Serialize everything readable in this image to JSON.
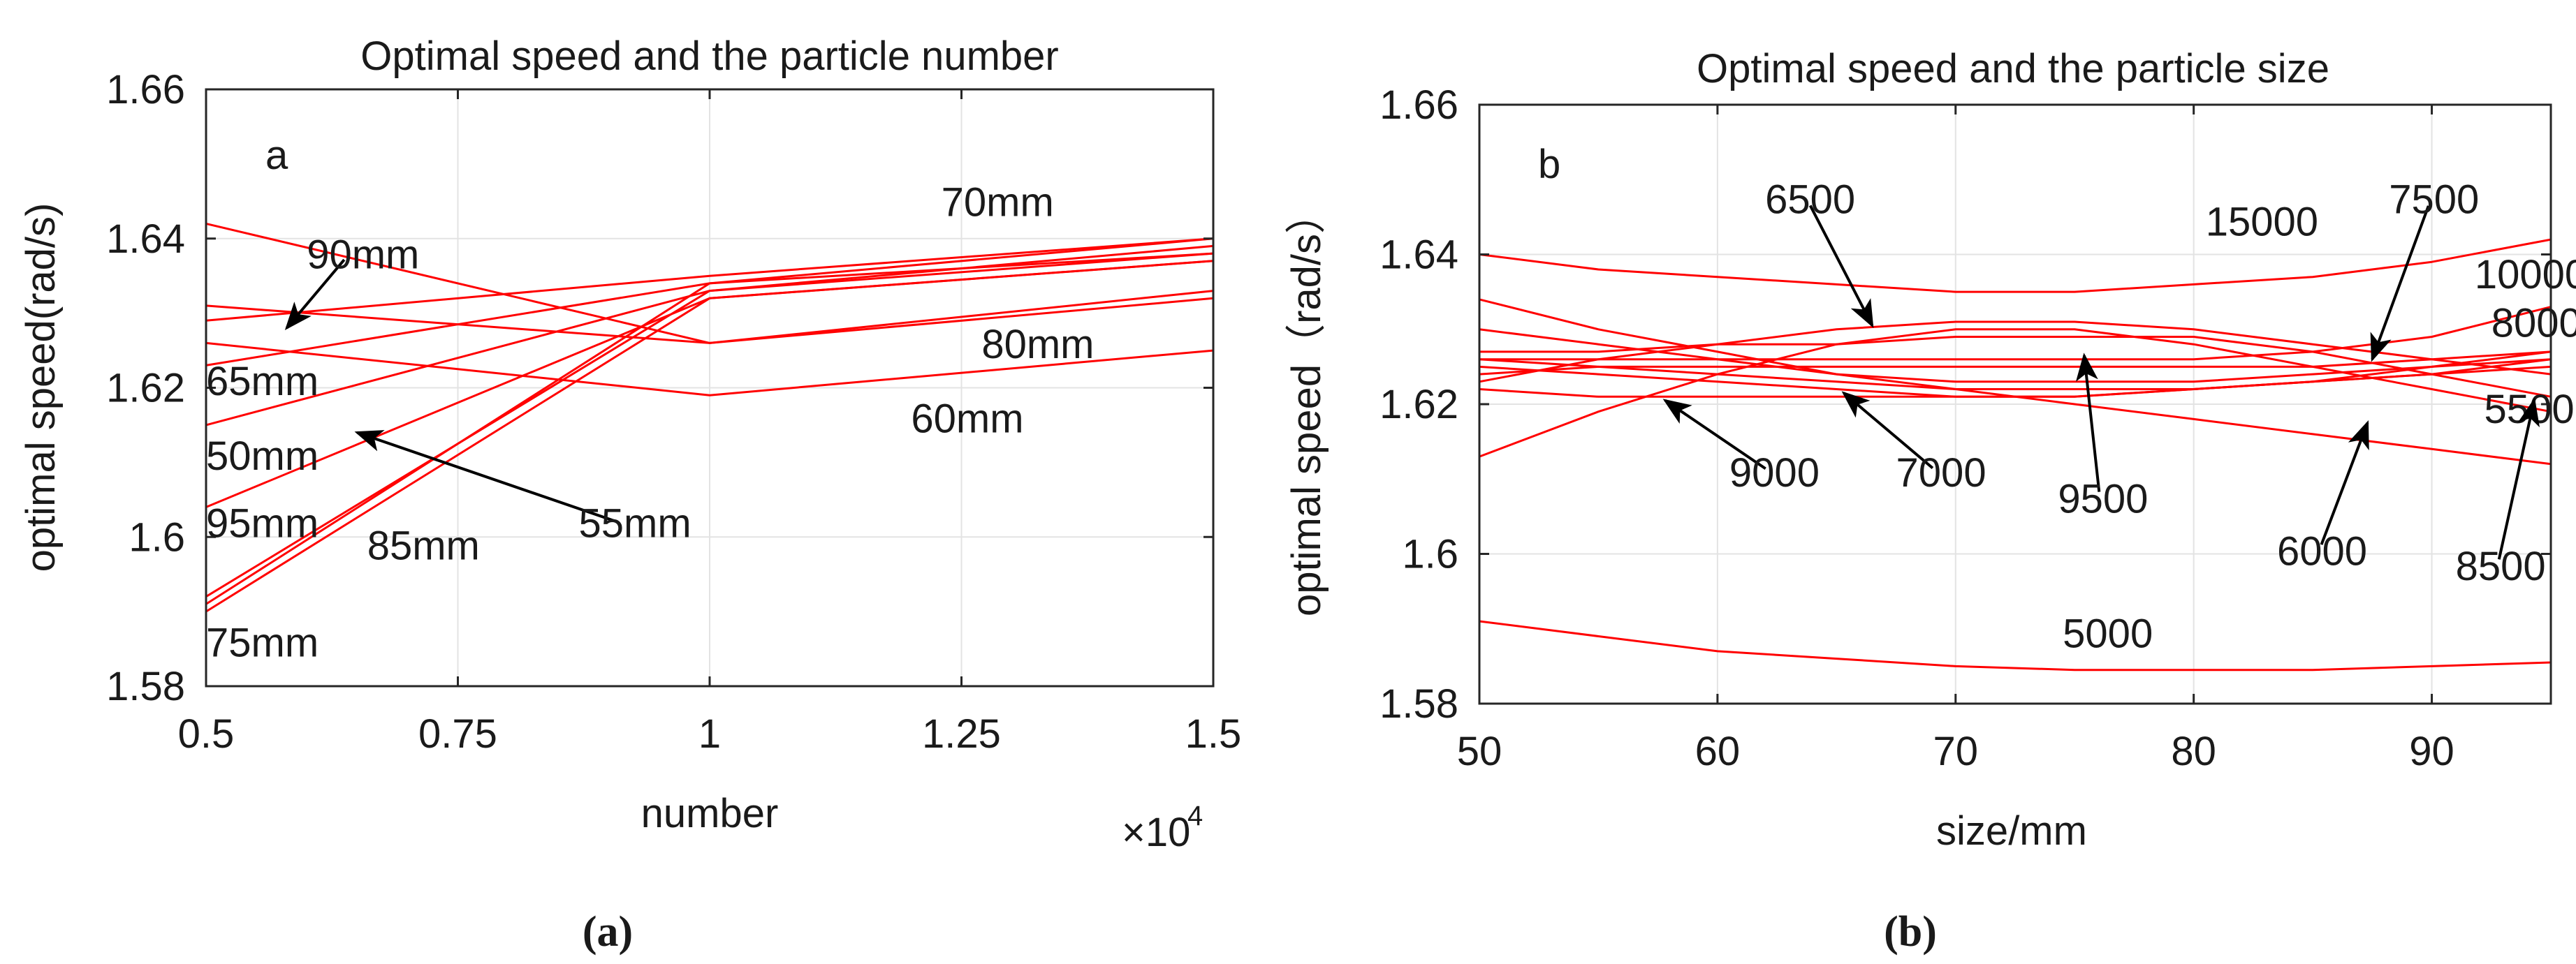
{
  "chart_data": [
    {
      "id": "a",
      "type": "line",
      "title": "Optimal speed and the particle number",
      "panel_letter": "a",
      "xlabel": "number",
      "ylabel": "optimal speed(rad/s)",
      "x_exponent_label": "×10",
      "x_exponent_power": "4",
      "xlim": [
        0.5,
        1.5
      ],
      "ylim": [
        1.58,
        1.66
      ],
      "xticks": [
        0.5,
        0.75,
        1,
        1.25,
        1.5
      ],
      "xtick_labels": [
        "0.5",
        "0.75",
        "1",
        "1.25",
        "1.5"
      ],
      "yticks": [
        1.58,
        1.6,
        1.62,
        1.64,
        1.66
      ],
      "ytick_labels": [
        "1.58",
        "1.6",
        "1.62",
        "1.64",
        "1.66"
      ],
      "grid": true,
      "line_color": "#ff0000",
      "x": [
        0.5,
        1,
        1.5
      ],
      "series": [
        {
          "name": "50mm",
          "values": [
            1.615,
            1.633,
            1.639
          ]
        },
        {
          "name": "55mm",
          "values": [
            1.591,
            1.634,
            1.638
          ]
        },
        {
          "name": "60mm",
          "values": [
            1.626,
            1.619,
            1.625
          ]
        },
        {
          "name": "65mm",
          "values": [
            1.623,
            1.634,
            1.64
          ]
        },
        {
          "name": "70mm",
          "values": [
            1.629,
            1.635,
            1.64
          ]
        },
        {
          "name": "75mm",
          "values": [
            1.59,
            1.632,
            1.637
          ]
        },
        {
          "name": "80mm",
          "values": [
            1.631,
            1.626,
            1.632
          ]
        },
        {
          "name": "85mm",
          "values": [
            1.592,
            1.633,
            1.638
          ]
        },
        {
          "name": "90mm",
          "values": [
            1.642,
            1.626,
            1.633
          ]
        },
        {
          "name": "95mm",
          "values": [
            1.604,
            1.632,
            1.637
          ]
        }
      ],
      "annotations": [
        {
          "text": "90mm",
          "data": [
            0.6,
            1.636
          ],
          "arrow_to": [
            0.58,
            1.628
          ]
        },
        {
          "text": "70mm",
          "data": [
            1.23,
            1.643
          ]
        },
        {
          "text": "65mm",
          "data": [
            0.5,
            1.619
          ]
        },
        {
          "text": "80mm",
          "data": [
            1.27,
            1.624
          ]
        },
        {
          "text": "50mm",
          "data": [
            0.5,
            1.609
          ]
        },
        {
          "text": "60mm",
          "data": [
            1.2,
            1.614
          ]
        },
        {
          "text": "95mm",
          "data": [
            0.5,
            1.6
          ]
        },
        {
          "text": "55mm",
          "data": [
            0.87,
            1.6
          ],
          "arrow_to": [
            0.65,
            1.614
          ]
        },
        {
          "text": "85mm",
          "data": [
            0.66,
            1.597
          ]
        },
        {
          "text": "75mm",
          "data": [
            0.5,
            1.584
          ]
        }
      ],
      "caption": "(a)"
    },
    {
      "id": "b",
      "type": "line",
      "title": "Optimal speed and the particle size",
      "panel_letter": "b",
      "xlabel": "size/mm",
      "ylabel": "optimal speed（rad/s）",
      "xlim": [
        50,
        95
      ],
      "ylim": [
        1.58,
        1.66
      ],
      "xticks": [
        50,
        60,
        70,
        80,
        90
      ],
      "xtick_labels": [
        "50",
        "60",
        "70",
        "80",
        "90"
      ],
      "yticks": [
        1.58,
        1.6,
        1.62,
        1.64,
        1.66
      ],
      "ytick_labels": [
        "1.58",
        "1.6",
        "1.62",
        "1.64",
        "1.66"
      ],
      "grid": true,
      "line_color": "#ff0000",
      "x": [
        50,
        55,
        60,
        65,
        70,
        75,
        80,
        85,
        90,
        95
      ],
      "series": [
        {
          "name": "5000",
          "values": [
            1.591,
            1.589,
            1.587,
            1.586,
            1.585,
            1.5845,
            1.5845,
            1.5845,
            1.585,
            1.5855
          ]
        },
        {
          "name": "5500",
          "values": [
            1.613,
            1.619,
            1.624,
            1.628,
            1.63,
            1.63,
            1.628,
            1.625,
            1.622,
            1.619
          ]
        },
        {
          "name": "6000",
          "values": [
            1.634,
            1.63,
            1.627,
            1.624,
            1.622,
            1.62,
            1.618,
            1.616,
            1.614,
            1.612
          ]
        },
        {
          "name": "6500",
          "values": [
            1.623,
            1.626,
            1.628,
            1.63,
            1.631,
            1.631,
            1.63,
            1.628,
            1.626,
            1.624
          ]
        },
        {
          "name": "7000",
          "values": [
            1.626,
            1.625,
            1.624,
            1.623,
            1.622,
            1.622,
            1.622,
            1.623,
            1.624,
            1.625
          ]
        },
        {
          "name": "7500",
          "values": [
            1.625,
            1.624,
            1.623,
            1.622,
            1.621,
            1.621,
            1.622,
            1.623,
            1.625,
            1.626
          ]
        },
        {
          "name": "8000",
          "values": [
            1.622,
            1.621,
            1.621,
            1.621,
            1.621,
            1.621,
            1.622,
            1.623,
            1.624,
            1.626
          ]
        },
        {
          "name": "8500",
          "values": [
            1.627,
            1.627,
            1.628,
            1.628,
            1.629,
            1.629,
            1.629,
            1.627,
            1.624,
            1.621
          ]
        },
        {
          "name": "9000",
          "values": [
            1.63,
            1.628,
            1.626,
            1.624,
            1.623,
            1.623,
            1.623,
            1.624,
            1.625,
            1.627
          ]
        },
        {
          "name": "9500",
          "values": [
            1.624,
            1.625,
            1.625,
            1.625,
            1.625,
            1.625,
            1.625,
            1.625,
            1.626,
            1.627
          ]
        },
        {
          "name": "10000",
          "values": [
            1.626,
            1.626,
            1.626,
            1.626,
            1.626,
            1.626,
            1.626,
            1.627,
            1.629,
            1.633
          ]
        },
        {
          "name": "15000",
          "values": [
            1.64,
            1.638,
            1.637,
            1.636,
            1.635,
            1.635,
            1.636,
            1.637,
            1.639,
            1.642
          ]
        }
      ],
      "annotations": [
        {
          "text": "6500",
          "data": [
            62,
            1.6455
          ],
          "arrow_to": [
            66.5,
            1.6305
          ]
        },
        {
          "text": "15000",
          "data": [
            80.5,
            1.6425
          ]
        },
        {
          "text": "7500",
          "data": [
            88.2,
            1.6455
          ],
          "arrow_to": [
            87.5,
            1.626
          ]
        },
        {
          "text": "10000",
          "data": [
            91.8,
            1.6355
          ]
        },
        {
          "text": "8000",
          "data": [
            92.5,
            1.629
          ]
        },
        {
          "text": "5500",
          "data": [
            92.2,
            1.6175
          ]
        },
        {
          "text": "9000",
          "data": [
            60.5,
            1.609
          ],
          "arrow_to": [
            57.8,
            1.6205
          ]
        },
        {
          "text": "7000",
          "data": [
            67.5,
            1.609
          ],
          "arrow_to": [
            65.3,
            1.6215
          ]
        },
        {
          "text": "9500",
          "data": [
            74.3,
            1.6055
          ],
          "arrow_to": [
            75.4,
            1.6265
          ]
        },
        {
          "text": "6000",
          "data": [
            83.5,
            1.5985
          ],
          "arrow_to": [
            87.3,
            1.6175
          ]
        },
        {
          "text": "8500",
          "data": [
            91,
            1.5965
          ],
          "arrow_to": [
            94.3,
            1.6205
          ]
        },
        {
          "text": "5000",
          "data": [
            74.5,
            1.5875
          ]
        }
      ],
      "caption": "(b)"
    }
  ]
}
